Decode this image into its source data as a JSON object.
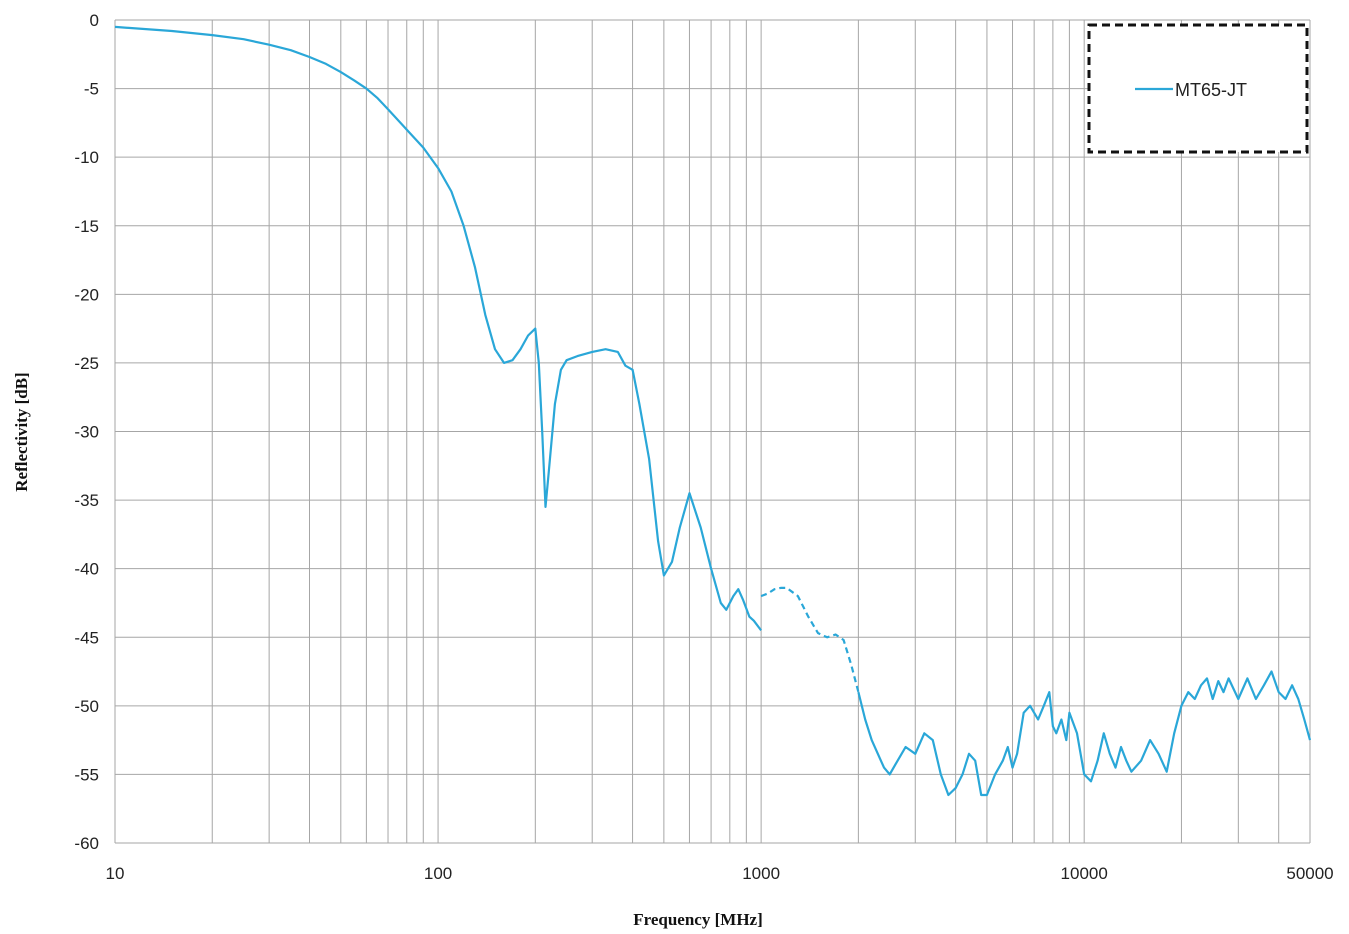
{
  "chart_data": {
    "type": "line",
    "title": "",
    "xlabel": "Frequency [MHz]",
    "ylabel": "Reflectivity [dB]",
    "xscale": "log",
    "xlim": [
      10,
      50000
    ],
    "ylim": [
      -60,
      0
    ],
    "x_tick_labels": [
      "10",
      "100",
      "1000",
      "10000",
      "50000"
    ],
    "y_tick_labels": [
      "0",
      "-5",
      "-10",
      "-15",
      "-20",
      "-25",
      "-30",
      "-35",
      "-40",
      "-45",
      "-50",
      "-55",
      "-60"
    ],
    "grid": true,
    "legend": {
      "position": "top-right",
      "style": "dashed-border"
    },
    "series": [
      {
        "name": "MT65-JT",
        "color": "#2aa7d8",
        "segments": [
          {
            "style": "solid",
            "points": [
              [
                10,
                -0.5
              ],
              [
                15,
                -0.8
              ],
              [
                20,
                -1.1
              ],
              [
                25,
                -1.4
              ],
              [
                30,
                -1.8
              ],
              [
                35,
                -2.2
              ],
              [
                40,
                -2.7
              ],
              [
                45,
                -3.2
              ],
              [
                50,
                -3.8
              ],
              [
                55,
                -4.4
              ],
              [
                60,
                -5.0
              ],
              [
                65,
                -5.7
              ],
              [
                70,
                -6.5
              ],
              [
                80,
                -8.0
              ],
              [
                90,
                -9.3
              ],
              [
                100,
                -10.8
              ],
              [
                110,
                -12.5
              ],
              [
                120,
                -15.0
              ],
              [
                130,
                -18.0
              ],
              [
                140,
                -21.5
              ],
              [
                150,
                -24.0
              ],
              [
                160,
                -25.0
              ],
              [
                170,
                -24.8
              ],
              [
                180,
                -24.0
              ],
              [
                190,
                -23.0
              ],
              [
                200,
                -22.5
              ],
              [
                205,
                -25.0
              ],
              [
                210,
                -30.0
              ],
              [
                215,
                -35.5
              ],
              [
                220,
                -33.0
              ],
              [
                230,
                -28.0
              ],
              [
                240,
                -25.5
              ],
              [
                250,
                -24.8
              ],
              [
                270,
                -24.5
              ],
              [
                300,
                -24.2
              ],
              [
                330,
                -24.0
              ],
              [
                360,
                -24.2
              ],
              [
                380,
                -25.2
              ],
              [
                400,
                -25.5
              ],
              [
                420,
                -28.0
              ],
              [
                450,
                -32.0
              ],
              [
                480,
                -38.0
              ],
              [
                500,
                -40.5
              ],
              [
                530,
                -39.5
              ],
              [
                560,
                -37.0
              ],
              [
                600,
                -34.5
              ],
              [
                650,
                -37.0
              ],
              [
                700,
                -40.0
              ],
              [
                750,
                -42.5
              ],
              [
                780,
                -43.0
              ],
              [
                820,
                -42.0
              ],
              [
                850,
                -41.5
              ],
              [
                880,
                -42.3
              ],
              [
                920,
                -43.5
              ],
              [
                950,
                -43.8
              ],
              [
                1000,
                -44.5
              ]
            ]
          },
          {
            "style": "dashed",
            "points": [
              [
                1000,
                -42.0
              ],
              [
                1050,
                -41.8
              ],
              [
                1100,
                -41.5
              ],
              [
                1150,
                -41.4
              ],
              [
                1200,
                -41.4
              ],
              [
                1300,
                -42.0
              ],
              [
                1400,
                -43.5
              ],
              [
                1500,
                -44.7
              ],
              [
                1600,
                -45.0
              ],
              [
                1700,
                -44.8
              ],
              [
                1800,
                -45.2
              ],
              [
                1900,
                -47.0
              ],
              [
                2000,
                -49.0
              ]
            ]
          },
          {
            "style": "solid",
            "points": [
              [
                2000,
                -49.0
              ],
              [
                2100,
                -51.0
              ],
              [
                2200,
                -52.5
              ],
              [
                2400,
                -54.5
              ],
              [
                2500,
                -55.0
              ],
              [
                2600,
                -54.3
              ],
              [
                2800,
                -53.0
              ],
              [
                3000,
                -53.5
              ],
              [
                3200,
                -52.0
              ],
              [
                3400,
                -52.5
              ],
              [
                3600,
                -55.0
              ],
              [
                3800,
                -56.5
              ],
              [
                4000,
                -56.0
              ],
              [
                4200,
                -55.0
              ],
              [
                4400,
                -53.5
              ],
              [
                4600,
                -54.0
              ],
              [
                4800,
                -56.5
              ],
              [
                5000,
                -56.5
              ],
              [
                5300,
                -55.0
              ],
              [
                5600,
                -54.0
              ],
              [
                5800,
                -53.0
              ],
              [
                6000,
                -54.5
              ],
              [
                6200,
                -53.5
              ],
              [
                6500,
                -50.5
              ],
              [
                6800,
                -50.0
              ],
              [
                7000,
                -50.5
              ],
              [
                7200,
                -51.0
              ],
              [
                7500,
                -50.0
              ],
              [
                7800,
                -49.0
              ],
              [
                8000,
                -51.5
              ],
              [
                8200,
                -52.0
              ],
              [
                8500,
                -51.0
              ],
              [
                8800,
                -52.5
              ],
              [
                9000,
                -50.5
              ],
              [
                9500,
                -52.0
              ],
              [
                10000,
                -55.0
              ],
              [
                10500,
                -55.5
              ],
              [
                11000,
                -54.0
              ],
              [
                11500,
                -52.0
              ],
              [
                12000,
                -53.5
              ],
              [
                12500,
                -54.5
              ],
              [
                13000,
                -53.0
              ],
              [
                13500,
                -54.0
              ],
              [
                14000,
                -54.8
              ],
              [
                15000,
                -54.0
              ],
              [
                16000,
                -52.5
              ],
              [
                17000,
                -53.5
              ],
              [
                18000,
                -54.8
              ],
              [
                19000,
                -52.0
              ],
              [
                20000,
                -50.0
              ],
              [
                21000,
                -49.0
              ],
              [
                22000,
                -49.5
              ],
              [
                23000,
                -48.5
              ],
              [
                24000,
                -48.0
              ],
              [
                25000,
                -49.5
              ],
              [
                26000,
                -48.2
              ],
              [
                27000,
                -49.0
              ],
              [
                28000,
                -48.0
              ],
              [
                30000,
                -49.5
              ],
              [
                32000,
                -48.0
              ],
              [
                34000,
                -49.5
              ],
              [
                36000,
                -48.5
              ],
              [
                38000,
                -47.5
              ],
              [
                40000,
                -49.0
              ],
              [
                42000,
                -49.5
              ],
              [
                44000,
                -48.5
              ],
              [
                46000,
                -49.5
              ],
              [
                48000,
                -51.0
              ],
              [
                50000,
                -52.5
              ]
            ]
          }
        ]
      }
    ]
  }
}
